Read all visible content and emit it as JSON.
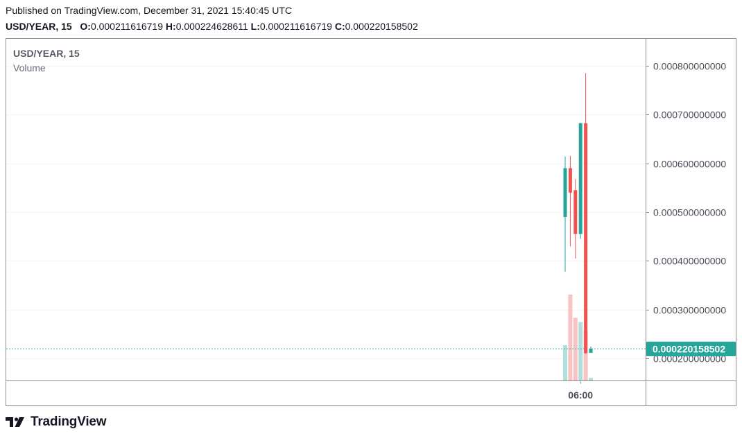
{
  "header": {
    "published": "Published on TradingView.com, December 31, 2021 15:40:45 UTC",
    "symbol": "USD/YEAR, 15",
    "ohlc": {
      "o_label": "O:",
      "o": "0.000211616719",
      "h_label": "H:",
      "h": "0.000224628611",
      "l_label": "L:",
      "l": "0.000211616719",
      "c_label": "C:",
      "c": "0.000220158502"
    }
  },
  "legend": {
    "symbol": "USD/YEAR, 15",
    "volume": "Volume"
  },
  "price_tag": "0.000220158502",
  "brand": "TradingView",
  "colors": {
    "up": "#26a69a",
    "down": "#ef5350",
    "up_volume": "#b2dfdb",
    "down_volume": "#f7c3c5",
    "price_line": "#26a69a",
    "grid": "#f0f3fa",
    "border": "#8c8c8c"
  },
  "chart_data": {
    "type": "candlestick",
    "y_ticks": [
      "0.000800000000",
      "0.000700000000",
      "0.000600000000",
      "0.000500000000",
      "0.000400000000",
      "0.000300000000",
      "0.000200000000"
    ],
    "x_ticks": [
      "06:00"
    ],
    "ylim": [
      0.000155,
      0.000855
    ],
    "grid": true,
    "last_price": 0.000220158502,
    "candles": [
      {
        "open": 0.00049,
        "high": 0.000614,
        "low": 0.000378,
        "close": 0.00059,
        "volume": 0.41
      },
      {
        "open": 0.00059,
        "high": 0.000615,
        "low": 0.00043,
        "close": 0.00054,
        "volume": 1.0
      },
      {
        "open": 0.000545,
        "high": 0.000568,
        "low": 0.000405,
        "close": 0.000455,
        "volume": 0.73
      },
      {
        "open": 0.000455,
        "high": 0.000683,
        "low": 0.000445,
        "close": 0.000682,
        "volume": 0.68
      },
      {
        "open": 0.000682,
        "high": 0.000785,
        "low": 0.00021,
        "close": 0.000211,
        "volume": 0.58
      },
      {
        "open": 0.000211616719,
        "high": 0.000224628611,
        "low": 0.000211616719,
        "close": 0.000220158502,
        "volume": 0.03
      }
    ]
  }
}
